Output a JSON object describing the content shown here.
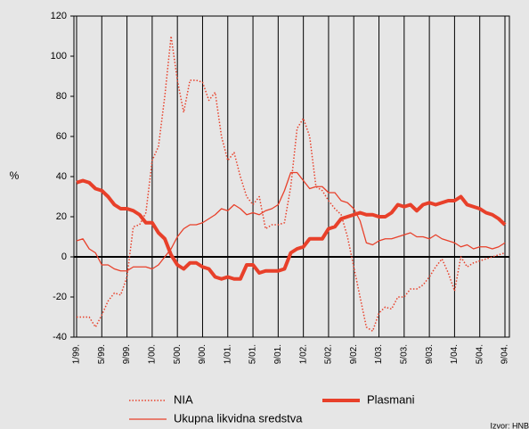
{
  "chart_data": {
    "type": "line",
    "y_label": "%",
    "source": "Izvor: HNB",
    "categories": [
      "1/99.",
      null,
      null,
      null,
      "5/99.",
      null,
      null,
      null,
      "9/99.",
      null,
      null,
      null,
      "1/00.",
      null,
      null,
      null,
      "5/00.",
      null,
      null,
      null,
      "9/00.",
      null,
      null,
      null,
      "1/01.",
      null,
      null,
      null,
      "5/01.",
      null,
      null,
      null,
      "9/01.",
      null,
      null,
      null,
      "1/02.",
      null,
      null,
      null,
      "5/02.",
      null,
      null,
      null,
      "9/02.",
      null,
      null,
      null,
      "1/03.",
      null,
      null,
      null,
      "5/03.",
      null,
      null,
      null,
      "9/03.",
      null,
      null,
      null,
      "1/04.",
      null,
      null,
      null,
      "5/04.",
      null,
      null,
      null,
      "9/04."
    ],
    "series": [
      {
        "name": "NIA",
        "color": "#e8402a",
        "style": "dotted",
        "width": 1.5,
        "values": [
          -30,
          -30,
          -30,
          -35,
          -29,
          -22,
          -18,
          -19,
          -10,
          15,
          16,
          22,
          48,
          55,
          80,
          110,
          88,
          72,
          88,
          88,
          87,
          78,
          82,
          60,
          48,
          52,
          40,
          30,
          26,
          30,
          14,
          16,
          16,
          17,
          35,
          64,
          69,
          60,
          35,
          33,
          28,
          24,
          21,
          10,
          -5,
          -20,
          -35,
          -37,
          -28,
          -25,
          -26,
          -20,
          -20,
          -16,
          -16,
          -14,
          -10,
          -5,
          -1,
          -8,
          -17,
          0,
          -5,
          -3,
          -2,
          -1,
          0,
          1,
          2
        ]
      },
      {
        "name": "Ukupna likvidna sredstva",
        "color": "#e8402a",
        "style": "solid",
        "width": 1.3,
        "values": [
          8,
          9,
          4,
          2,
          -4,
          -4,
          -6,
          -7,
          -7,
          -5,
          -5,
          -5,
          -6,
          -4,
          0,
          4,
          10,
          14,
          16,
          16,
          17,
          19,
          21,
          24,
          23,
          26,
          24,
          21,
          22,
          21,
          23,
          24,
          26,
          33,
          42,
          42,
          38,
          34,
          35,
          35,
          32,
          32,
          28,
          27,
          24,
          18,
          7,
          6,
          8,
          9,
          9,
          10,
          11,
          12,
          10,
          10,
          9,
          11,
          9,
          8,
          7,
          5,
          6,
          4,
          5,
          5,
          4,
          5,
          7
        ]
      },
      {
        "name": "Plasmani",
        "color": "#e8402a",
        "style": "solid",
        "width": 4,
        "values": [
          37,
          38,
          37,
          34,
          33,
          30,
          26,
          24,
          24,
          23,
          21,
          17,
          17,
          12,
          9,
          1,
          -4,
          -6,
          -3,
          -3,
          -5,
          -6,
          -10,
          -11,
          -10,
          -11,
          -11,
          -4,
          -4,
          -8,
          -7,
          -7,
          -7,
          -6,
          2,
          4,
          5,
          9,
          9,
          9,
          14,
          15,
          19,
          20,
          21,
          22,
          21,
          21,
          20,
          20,
          22,
          26,
          25,
          26,
          23,
          26,
          27,
          26,
          27,
          28,
          28,
          30,
          26,
          25,
          24,
          22,
          21,
          19,
          16
        ]
      }
    ],
    "ylim": [
      -40,
      120
    ],
    "yticks": [
      -40,
      -20,
      0,
      20,
      40,
      60,
      80,
      100,
      120
    ],
    "xgrid": true
  }
}
